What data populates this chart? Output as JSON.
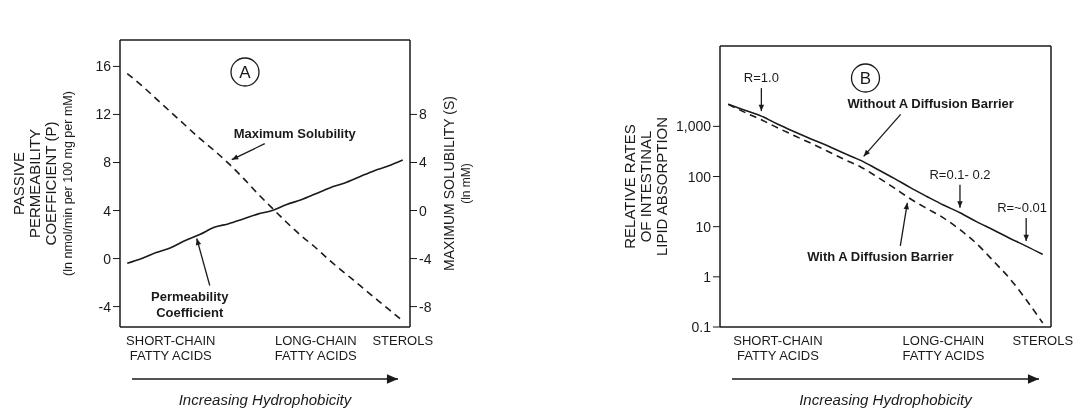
{
  "chart_data": [
    {
      "type": "line",
      "annotations": [
        "A"
      ],
      "xlabel": "Increasing Hydrophobicity",
      "ylabel": "PASSIVE\nPERMEABILITY\nCOEFFICIENT (P)\n(ln nmol/min per 100 mg per mM)",
      "y2label": "MAXIMUM SOLUBILITY (S)\n(ln mM)",
      "categories": [
        null,
        null,
        null,
        "SHORT-CHAIN\nFATTY ACIDS",
        null,
        null,
        null,
        null,
        null,
        null,
        null,
        null,
        null,
        "LONG-CHAIN\nFATTY ACIDS",
        null,
        null,
        null,
        null,
        null,
        "STEROLS"
      ],
      "ylim": [
        -5.7,
        18.2
      ],
      "yticks": [
        -4,
        0,
        4,
        8,
        12,
        16
      ],
      "y2lim": [
        -9.7,
        14.2
      ],
      "y2ticks": [
        -8,
        -4,
        0,
        4,
        8
      ],
      "marker": "none",
      "series": [
        {
          "name": "Permeability Coefficient",
          "color": "#1a1a1a",
          "line_style": "solid",
          "values": [
            -0.4,
            0.0,
            0.5,
            0.9,
            1.5,
            2.0,
            2.6,
            2.9,
            3.3,
            3.7,
            4.0,
            4.5,
            4.9,
            5.4,
            5.9,
            6.3,
            6.8,
            7.3,
            7.7,
            8.2
          ]
        },
        {
          "name": "Maximum Solubility",
          "color": "#1a1a1a",
          "line_style": "dashed",
          "axis": "y2",
          "values": [
            11.4,
            10.4,
            9.3,
            8.2,
            7.1,
            6.0,
            5.0,
            3.9,
            2.7,
            1.4,
            0.2,
            -1.0,
            -2.1,
            -3.1,
            -4.2,
            -5.2,
            -6.2,
            -7.2,
            -8.2,
            -9.2
          ]
        }
      ]
    },
    {
      "type": "line",
      "annotations": [
        "B",
        {
          "text": "R=1.0",
          "y": 1600
        },
        {
          "text": "R=0.1- 0.2",
          "y": 19
        },
        {
          "text": "R=~0.01",
          "y": 4.1
        }
      ],
      "xlabel": "Increasing Hydrophobicity",
      "ylabel": "RELATIVE RATES\nOF INTESTINAL\nLIPID ABSORPTION",
      "categories": [
        null,
        null,
        null,
        "SHORT-CHAIN\nFATTY ACIDS",
        null,
        null,
        null,
        null,
        null,
        null,
        null,
        null,
        null,
        "LONG-CHAIN\nFATTY ACIDS",
        null,
        null,
        null,
        null,
        null,
        "STEROLS"
      ],
      "log": true,
      "ylim": [
        0.1,
        40000
      ],
      "yticks": [
        0.1,
        1,
        10,
        100,
        {
          "value": 1000,
          "label": "1,000"
        }
      ],
      "marker": "none",
      "series": [
        {
          "name": "Without A Diffusion Barrier",
          "color": "#1a1a1a",
          "line_style": "solid",
          "values": [
            2750,
            2100,
            1600,
            1100,
            780,
            560,
            410,
            290,
            210,
            140,
            93,
            60,
            40,
            27,
            19,
            12.6,
            8.7,
            5.9,
            4.1,
            2.8
          ]
        },
        {
          "name": "With A Diffusion Barrier",
          "color": "#1a1a1a",
          "line_style": "dashed",
          "values": [
            2750,
            1900,
            1350,
            930,
            650,
            460,
            320,
            220,
            155,
            98,
            60,
            36,
            23,
            15,
            8.7,
            4.6,
            2.1,
            0.93,
            0.35,
            0.12
          ]
        }
      ]
    }
  ]
}
